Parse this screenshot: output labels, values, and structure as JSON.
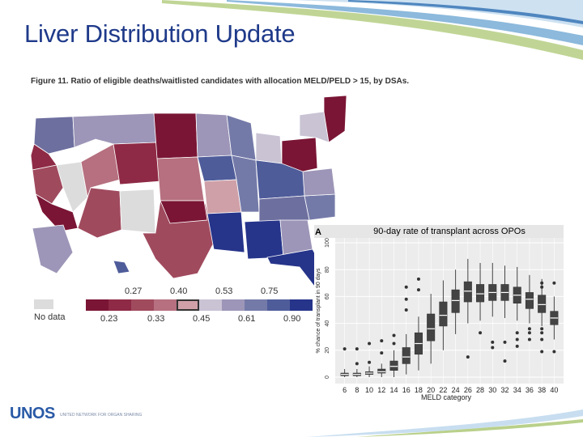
{
  "slide": {
    "title": "Liver Distribution Update",
    "figure_caption": "Figure 11. Ratio of eligible deaths/waitlisted candidates with allocation MELD/PELD > 15, by DSAs.",
    "logo_text": "UNOS",
    "logo_tagline": "UNITED NETWORK FOR ORGAN SHARING"
  },
  "map_legend": {
    "nodata_label": "No data",
    "top_ticks": [
      "0.27",
      "0.40",
      "0.53",
      "0.75"
    ],
    "bottom_ticks": [
      "0.23",
      "0.33",
      "0.45",
      "0.61",
      "0.90"
    ],
    "colors": [
      "#7a1535",
      "#8e2a45",
      "#a04a5e",
      "#b6707f",
      "#cfa0a8",
      "#c9c3d4",
      "#9d96b8",
      "#747aa8",
      "#4f5c9a",
      "#26348a"
    ],
    "highlighted_bin_index": 4
  },
  "chart_data": {
    "type": "box",
    "panel_letter": "A",
    "title": "90-day rate of transplant across OPOs",
    "xlabel": "MELD category",
    "ylabel": "% chance of transplant in 90 days",
    "categories": [
      "6",
      "8",
      "10",
      "12",
      "14",
      "16",
      "18",
      "20",
      "22",
      "24",
      "26",
      "28",
      "30",
      "32",
      "34",
      "36",
      "38",
      "40"
    ],
    "ylim": [
      0,
      100
    ],
    "yticks": [
      "0",
      "20",
      "40",
      "60",
      "80",
      "100"
    ],
    "boxes": [
      {
        "q1": 1,
        "median": 2,
        "q3": 3,
        "low": 0,
        "high": 6,
        "outliers": [
          21
        ]
      },
      {
        "q1": 1,
        "median": 2,
        "q3": 3,
        "low": 0,
        "high": 6,
        "outliers": [
          10,
          21
        ]
      },
      {
        "q1": 2,
        "median": 3,
        "q3": 4,
        "low": 0,
        "high": 8,
        "outliers": [
          11,
          25
        ]
      },
      {
        "q1": 3,
        "median": 4,
        "q3": 6,
        "low": 0,
        "high": 10,
        "outliers": [
          18,
          27
        ]
      },
      {
        "q1": 5,
        "median": 8,
        "q3": 12,
        "low": 0,
        "high": 20,
        "outliers": [
          25,
          31
        ]
      },
      {
        "q1": 10,
        "median": 15,
        "q3": 22,
        "low": 2,
        "high": 32,
        "outliers": [
          50,
          58,
          67
        ]
      },
      {
        "q1": 17,
        "median": 25,
        "q3": 33,
        "low": 5,
        "high": 45,
        "outliers": [
          65,
          73
        ]
      },
      {
        "q1": 27,
        "median": 36,
        "q3": 47,
        "low": 10,
        "high": 62,
        "outliers": []
      },
      {
        "q1": 38,
        "median": 46,
        "q3": 56,
        "low": 20,
        "high": 72,
        "outliers": []
      },
      {
        "q1": 48,
        "median": 57,
        "q3": 65,
        "low": 32,
        "high": 80,
        "outliers": []
      },
      {
        "q1": 56,
        "median": 64,
        "q3": 71,
        "low": 40,
        "high": 88,
        "outliers": [
          15
        ]
      },
      {
        "q1": 56,
        "median": 62,
        "q3": 69,
        "low": 42,
        "high": 85,
        "outliers": [
          33
        ]
      },
      {
        "q1": 57,
        "median": 63,
        "q3": 69,
        "low": 45,
        "high": 85,
        "outliers": [
          22,
          26
        ]
      },
      {
        "q1": 57,
        "median": 63,
        "q3": 69,
        "low": 44,
        "high": 83,
        "outliers": [
          12,
          26
        ]
      },
      {
        "q1": 55,
        "median": 61,
        "q3": 67,
        "low": 42,
        "high": 82,
        "outliers": [
          23,
          28,
          33
        ]
      },
      {
        "q1": 51,
        "median": 58,
        "q3": 63,
        "low": 40,
        "high": 76,
        "outliers": [
          28,
          33,
          36
        ]
      },
      {
        "q1": 48,
        "median": 54,
        "q3": 61,
        "low": 38,
        "high": 73,
        "outliers": [
          19,
          28,
          33,
          36,
          67,
          70
        ]
      },
      {
        "q1": 39,
        "median": 44,
        "q3": 49,
        "low": 28,
        "high": 60,
        "outliers": [
          19,
          70
        ]
      }
    ]
  }
}
